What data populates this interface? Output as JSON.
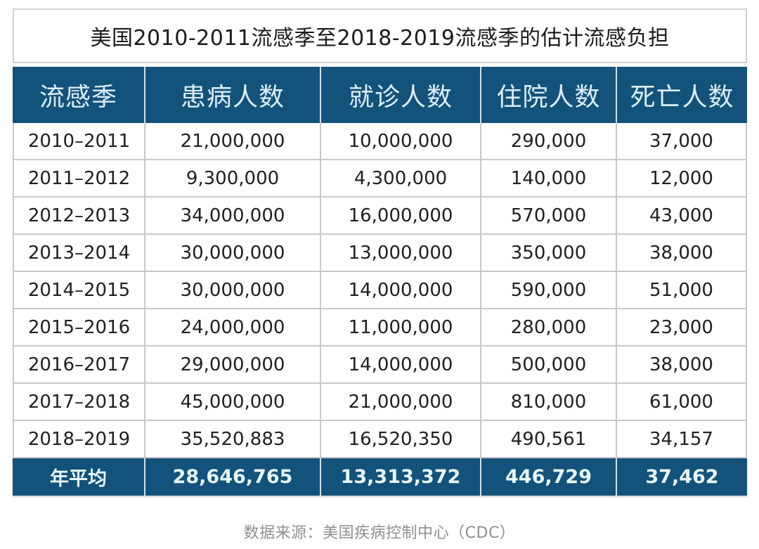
{
  "title": "美国2010-2011流感季至2018-2019流感季的估计流感负担",
  "table": {
    "headers": [
      "流感季",
      "患病人数",
      "就诊人数",
      "住院人数",
      "死亡人数"
    ],
    "rows": [
      [
        "2010–2011",
        "21,000,000",
        "10,000,000",
        "290,000",
        "37,000"
      ],
      [
        "2011–2012",
        "9,300,000",
        "4,300,000",
        "140,000",
        "12,000"
      ],
      [
        "2012–2013",
        "34,000,000",
        "16,000,000",
        "570,000",
        "43,000"
      ],
      [
        "2013–2014",
        "30,000,000",
        "13,000,000",
        "350,000",
        "38,000"
      ],
      [
        "2014–2015",
        "30,000,000",
        "14,000,000",
        "590,000",
        "51,000"
      ],
      [
        "2015–2016",
        "24,000,000",
        "11,000,000",
        "280,000",
        "23,000"
      ],
      [
        "2016–2017",
        "29,000,000",
        "14,000,000",
        "500,000",
        "38,000"
      ],
      [
        "2017–2018",
        "45,000,000",
        "21,000,000",
        "810,000",
        "61,000"
      ],
      [
        "2018–2019",
        "35,520,883",
        "16,520,350",
        "490,561",
        "34,157"
      ]
    ],
    "footer": [
      "年平均",
      "28,646,765",
      "13,313,372",
      "446,729",
      "37,462"
    ]
  },
  "source": "数据来源：美国疾病控制中心（CDC）",
  "colors": {
    "header_bg": "#12527b",
    "header_text": "#ddeef6",
    "grid_border": "#c9c9c9",
    "body_text": "#1f1f1f",
    "source_text": "#909090"
  },
  "chart_data": {
    "type": "table",
    "title": "美国2010-2011流感季至2018-2019流感季的估计流感负担",
    "columns": [
      "流感季",
      "患病人数",
      "就诊人数",
      "住院人数",
      "死亡人数"
    ],
    "categories": [
      "2010–2011",
      "2011–2012",
      "2012–2013",
      "2013–2014",
      "2014–2015",
      "2015–2016",
      "2016–2017",
      "2017–2018",
      "2018–2019"
    ],
    "series": [
      {
        "name": "患病人数",
        "values": [
          21000000,
          9300000,
          34000000,
          30000000,
          30000000,
          24000000,
          29000000,
          45000000,
          35520883
        ]
      },
      {
        "name": "就诊人数",
        "values": [
          10000000,
          4300000,
          16000000,
          13000000,
          14000000,
          11000000,
          14000000,
          21000000,
          16520350
        ]
      },
      {
        "name": "住院人数",
        "values": [
          290000,
          140000,
          570000,
          350000,
          590000,
          280000,
          500000,
          810000,
          490561
        ]
      },
      {
        "name": "死亡人数",
        "values": [
          37000,
          12000,
          43000,
          38000,
          51000,
          23000,
          38000,
          61000,
          34157
        ]
      }
    ],
    "average_row": {
      "label": "年平均",
      "values": [
        28646765,
        13313372,
        446729,
        37462
      ]
    },
    "source": "数据来源：美国疾病控制中心（CDC）"
  }
}
